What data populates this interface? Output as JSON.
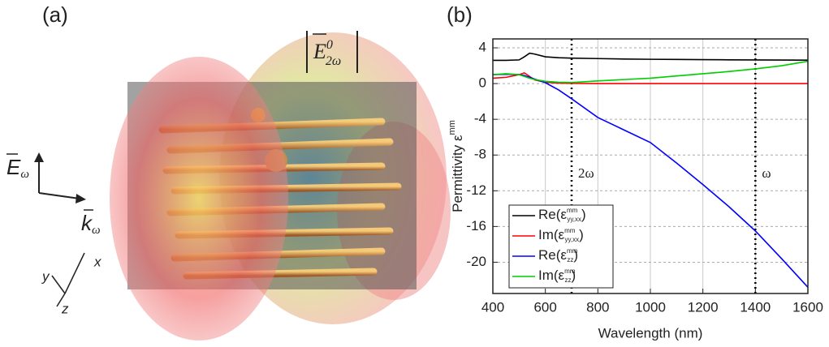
{
  "panel_a": {
    "label": "(a)",
    "field": {
      "symbol": "E",
      "sup": "0",
      "sub": "2ω"
    },
    "e_field": {
      "symbol": "E",
      "sub": "ω"
    },
    "k_vector": {
      "symbol": "k",
      "sub": "ω"
    },
    "axes": [
      "x",
      "y",
      "z"
    ]
  },
  "panel_b_label": "(b)",
  "chart_data": {
    "type": "line",
    "xlabel": "Wavelength (nm)",
    "ylabel": "Permittivity ε",
    "ylabel_sup": "mm",
    "x": [
      400,
      450,
      500,
      520,
      540,
      560,
      600,
      650,
      700,
      800,
      900,
      1000,
      1100,
      1200,
      1300,
      1400,
      1500,
      1600
    ],
    "series": [
      {
        "name": "Re(ε",
        "sup": "mm",
        "sub": "yy,xx",
        "close": ")",
        "color": "#000000",
        "values": [
          2.6,
          2.6,
          2.65,
          3.0,
          3.4,
          3.3,
          3.0,
          2.9,
          2.85,
          2.8,
          2.75,
          2.72,
          2.7,
          2.68,
          2.66,
          2.65,
          2.63,
          2.62
        ]
      },
      {
        "name": "Im(ε",
        "sup": "mm",
        "sub": "yy,xx",
        "close": ")",
        "color": "#ff0000",
        "values": [
          0.6,
          0.7,
          1.0,
          1.2,
          0.8,
          0.4,
          0.15,
          0.05,
          0.02,
          0,
          0,
          0,
          0,
          0,
          0,
          0,
          0,
          0
        ]
      },
      {
        "name": "Re(ε",
        "sup": "mm",
        "sub": "zz",
        "close": ")",
        "color": "#0000ff",
        "values": [
          1.0,
          1.05,
          1.0,
          0.9,
          0.7,
          0.5,
          0.1,
          -0.7,
          -1.7,
          -3.8,
          -5.2,
          -6.6,
          -8.9,
          -11.3,
          -13.8,
          -16.5,
          -19.6,
          -22.8
        ]
      },
      {
        "name": "Im(ε",
        "sup": "mm",
        "sub": "zz",
        "close": ")",
        "color": "#00cc00",
        "values": [
          1.0,
          1.1,
          1.0,
          0.8,
          0.6,
          0.45,
          0.25,
          0.15,
          0.12,
          0.3,
          0.45,
          0.6,
          0.85,
          1.1,
          1.35,
          1.65,
          2.0,
          2.5
        ]
      }
    ],
    "xlim": [
      400,
      1600
    ],
    "xticks": [
      400,
      600,
      800,
      1000,
      1200,
      1400,
      1600
    ],
    "ylim": [
      -23.5,
      5
    ],
    "yticks": [
      4,
      0,
      -4,
      -8,
      -12,
      -16,
      -20
    ],
    "grid": true,
    "vlines": [
      700,
      1400
    ],
    "annotations": [
      "2ω",
      "ω"
    ],
    "legend": "lower left"
  }
}
